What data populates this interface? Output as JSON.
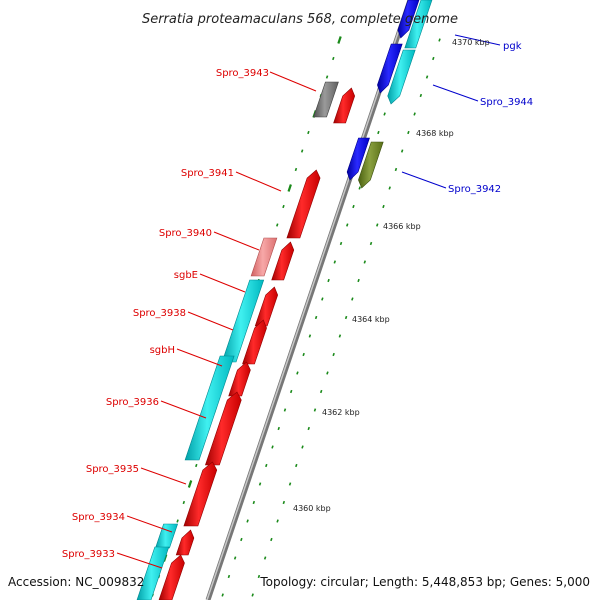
{
  "title": "Serratia proteamaculans 568, complete genome",
  "footer": {
    "accession": "Accession: NC_009832",
    "topology": "Topology: circular; Length: 5,448,853 bp; Genes: 5,000"
  },
  "colors": {
    "reverse_label": "#dd0000",
    "forward_label": "#0000cc",
    "backbone": "#888888",
    "tick": "#1a8a1a"
  },
  "kbp_markers": [
    "4370 kbp",
    "4368 kbp",
    "4366 kbp",
    "4364 kbp",
    "4362 kbp",
    "4360 kbp"
  ],
  "genes": [
    {
      "label": "pgk",
      "strand": "forward"
    },
    {
      "label": "Spro_3943",
      "strand": "reverse"
    },
    {
      "label": "Spro_3944",
      "strand": "forward"
    },
    {
      "label": "Spro_3942",
      "strand": "forward"
    },
    {
      "label": "Spro_3941",
      "strand": "reverse"
    },
    {
      "label": "Spro_3940",
      "strand": "reverse"
    },
    {
      "label": "sgbE",
      "strand": "reverse"
    },
    {
      "label": "Spro_3938",
      "strand": "reverse"
    },
    {
      "label": "sgbH",
      "strand": "reverse"
    },
    {
      "label": "Spro_3936",
      "strand": "reverse"
    },
    {
      "label": "Spro_3935",
      "strand": "reverse"
    },
    {
      "label": "Spro_3934",
      "strand": "reverse"
    },
    {
      "label": "Spro_3933",
      "strand": "reverse"
    }
  ]
}
